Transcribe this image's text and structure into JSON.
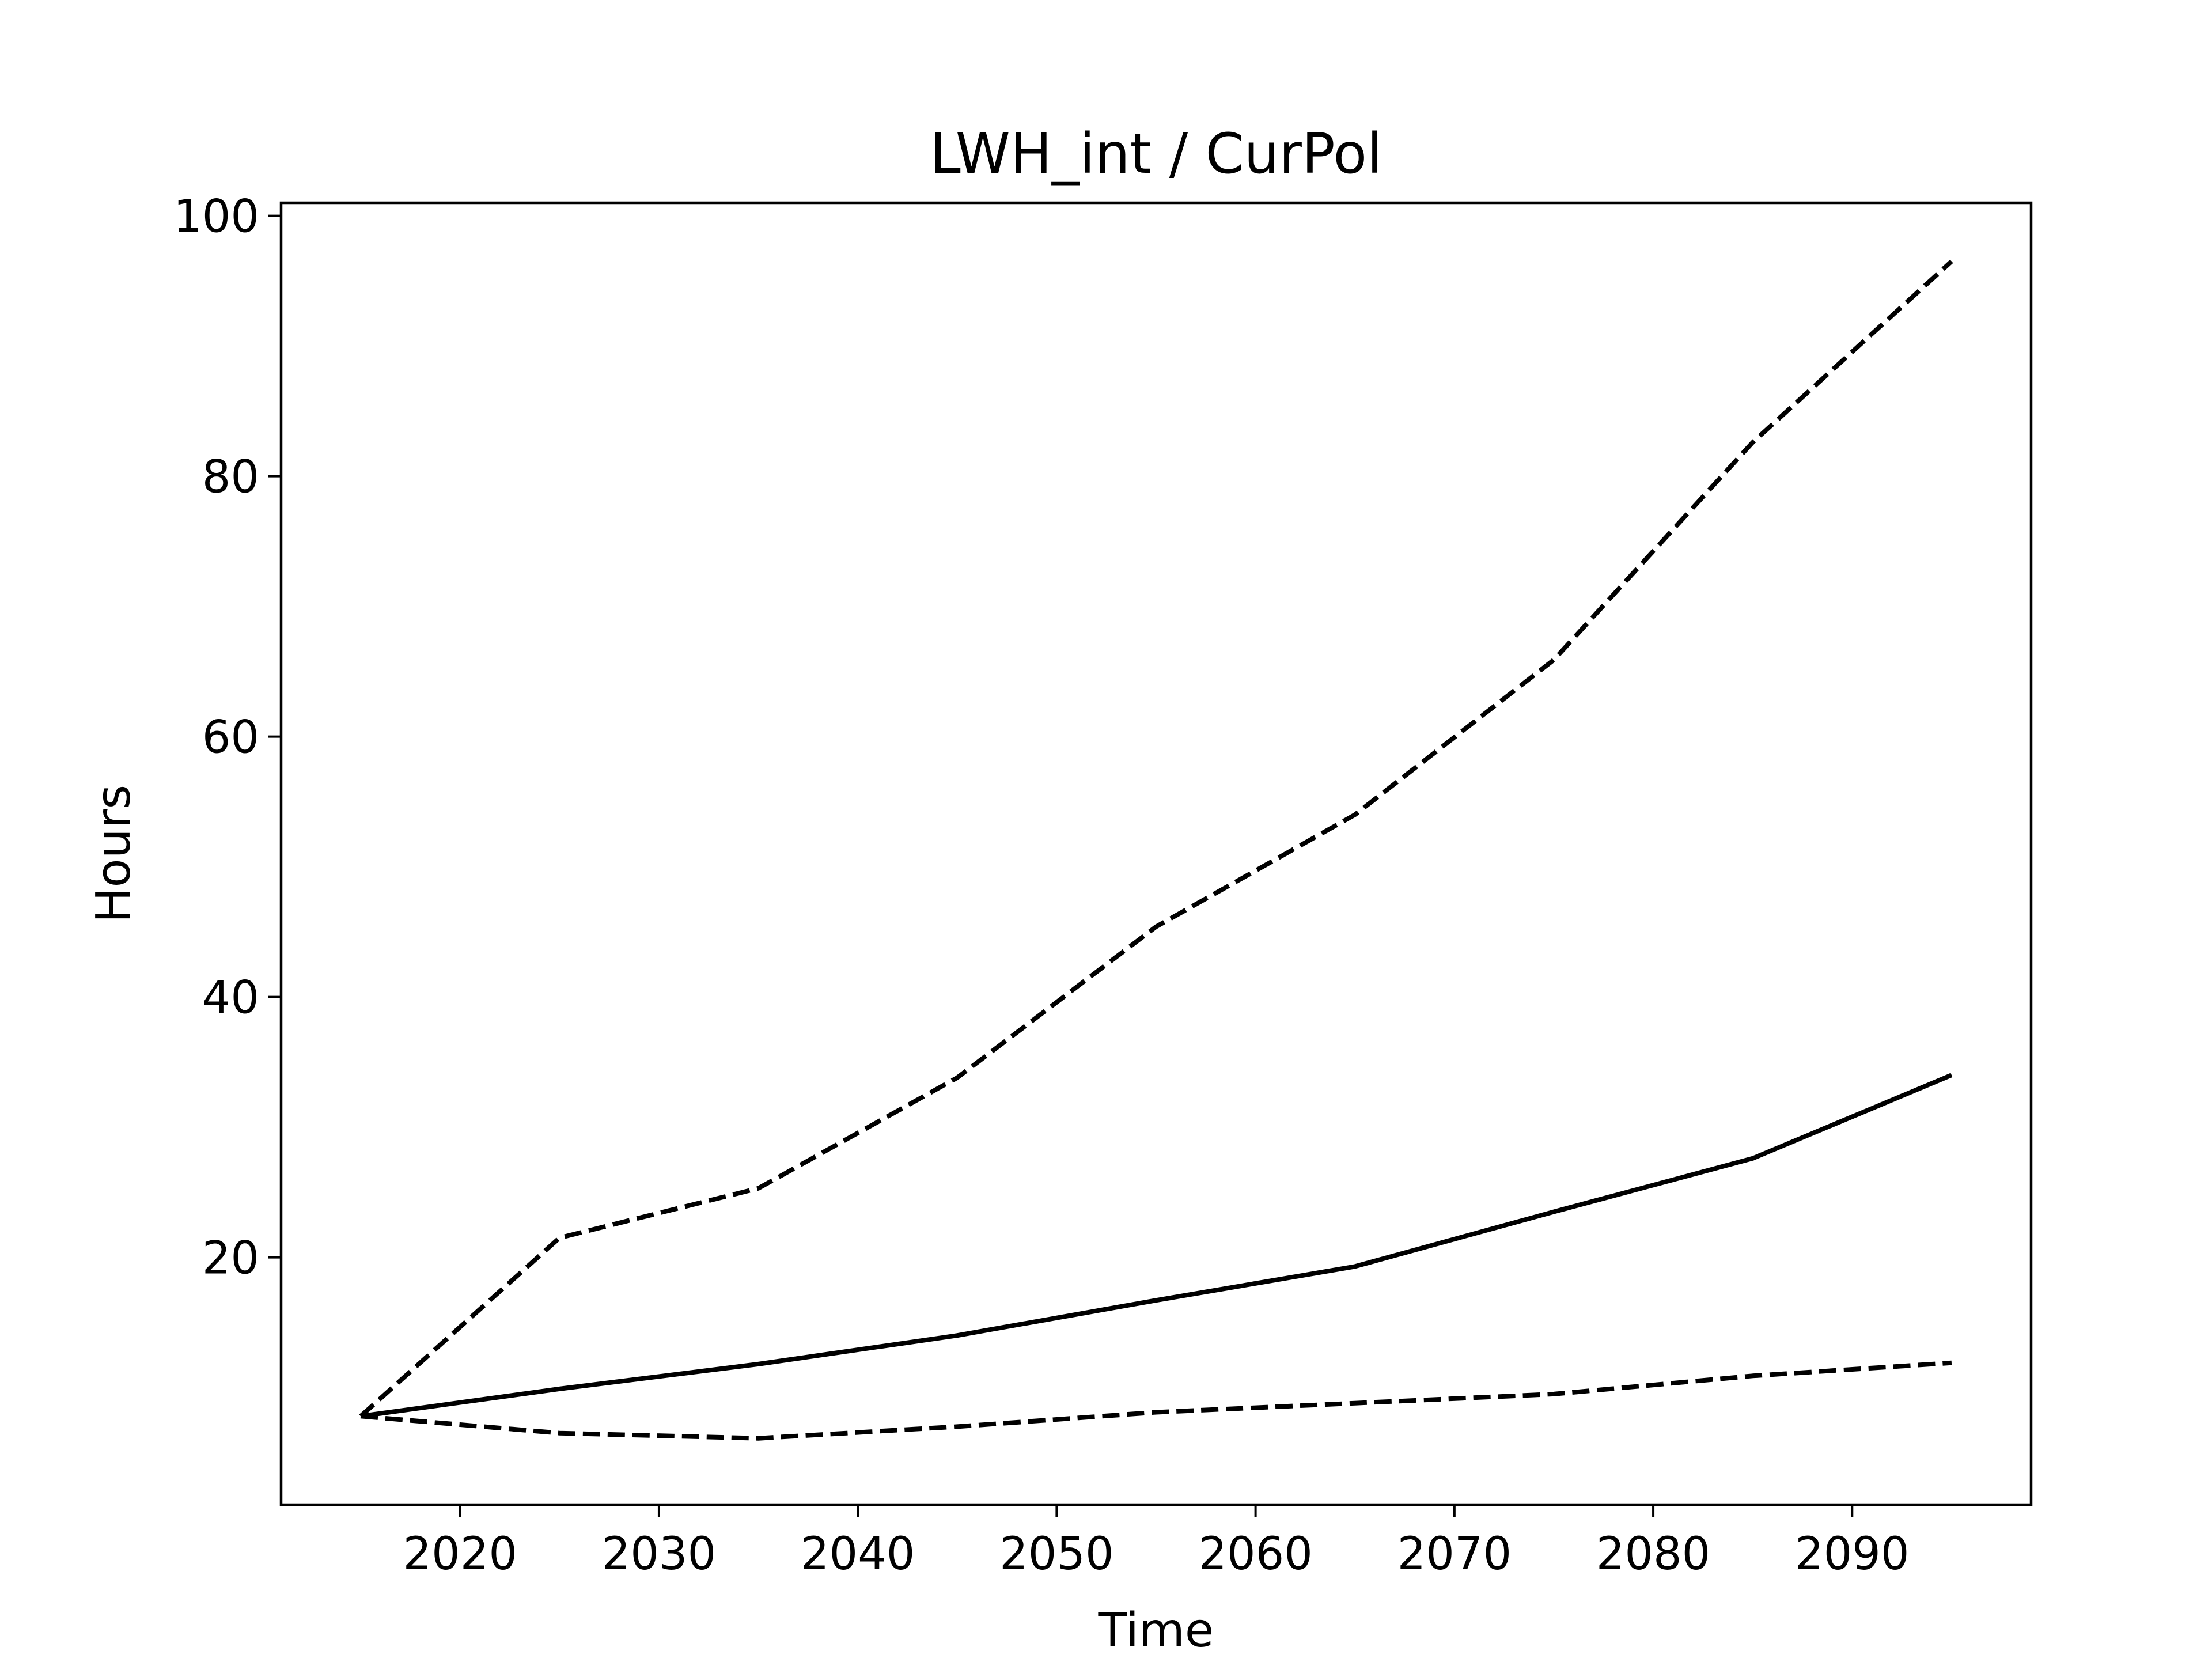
{
  "chart_data": {
    "type": "line",
    "title": "LWH_int / CurPol",
    "xlabel": "Time",
    "ylabel": "Hours",
    "xlim": [
      2011,
      2099
    ],
    "ylim": [
      1,
      101
    ],
    "xticks": [
      2020,
      2030,
      2040,
      2050,
      2060,
      2070,
      2080,
      2090
    ],
    "yticks": [
      20,
      40,
      60,
      80,
      100
    ],
    "x": [
      2015,
      2025,
      2035,
      2045,
      2055,
      2065,
      2075,
      2085,
      2095
    ],
    "grid": false,
    "legend": "none",
    "series": [
      {
        "style": "solid",
        "color": "#000000",
        "values": [
          7.8,
          9.9,
          11.8,
          14.0,
          16.7,
          19.3,
          23.5,
          27.6,
          34.0
        ]
      },
      {
        "style": "dashed",
        "color": "#000000",
        "values": [
          7.8,
          21.5,
          25.3,
          33.8,
          45.4,
          54.0,
          65.9,
          82.6,
          96.5
        ]
      },
      {
        "style": "dashed",
        "color": "#000000",
        "values": [
          7.8,
          6.5,
          6.1,
          7.0,
          8.1,
          8.8,
          9.5,
          10.9,
          11.9
        ]
      }
    ]
  }
}
